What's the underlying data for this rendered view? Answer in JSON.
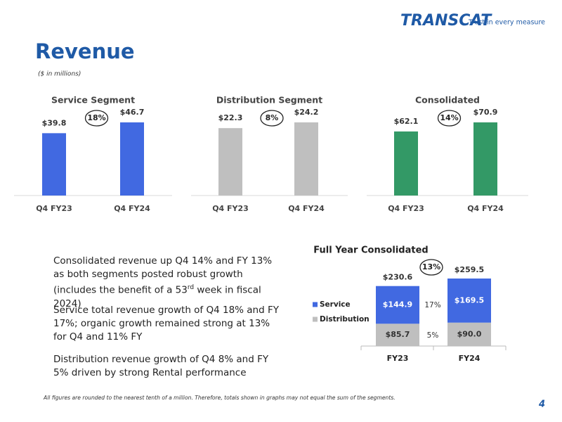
{
  "page": {
    "logo": "TRANSCAT",
    "tagline": "Trust in every measure",
    "title": "Revenue",
    "subtitle": "($ in millions)",
    "bullets": [
      [
        "Consolidated revenue up Q4 14% and FY 13% as both segments posted robust growth (includes the benefit of a 53",
        "rd",
        " week in fiscal 2024)"
      ],
      [
        "Service total revenue growth of Q4 18% and FY 17%; organic growth remained strong at 13% for Q4 and 11% FY"
      ],
      [
        "Distribution revenue growth of Q4 8% and FY 5% driven by strong Rental performance"
      ]
    ],
    "footnote": "All figures are rounded to the nearest tenth of a million. Therefore, totals shown in graphs may not equal the sum of the segments.",
    "page_number": "4"
  },
  "chart_data": [
    {
      "type": "bar",
      "title": "Service Segment",
      "categories": [
        "Q4 FY23",
        "Q4 FY24"
      ],
      "values": [
        39.8,
        46.7
      ],
      "value_labels": [
        "$39.8",
        "$46.7"
      ],
      "color": "#4169e1",
      "annotation": "18%"
    },
    {
      "type": "bar",
      "title": "Distribution Segment",
      "categories": [
        "Q4 FY23",
        "Q4 FY24"
      ],
      "values": [
        22.3,
        24.2
      ],
      "value_labels": [
        "$22.3",
        "$24.2"
      ],
      "color": "#bfbfbf",
      "annotation": "8%"
    },
    {
      "type": "bar",
      "title": "Consolidated",
      "categories": [
        "Q4 FY23",
        "Q4 FY24"
      ],
      "values": [
        62.1,
        70.9
      ],
      "value_labels": [
        "$62.1",
        "$70.9"
      ],
      "color": "#339966",
      "annotation": "14%"
    },
    {
      "type": "stacked-bar",
      "title": "Full Year Consolidated",
      "categories": [
        "FY23",
        "FY24"
      ],
      "series": [
        {
          "name": "Service",
          "color": "#4169e1",
          "values": [
            144.9,
            169.5
          ],
          "value_labels": [
            "$144.9",
            "$169.5"
          ],
          "growth_label": "17%"
        },
        {
          "name": "Distribution",
          "color": "#bfbfbf",
          "values": [
            85.7,
            90.0
          ],
          "value_labels": [
            "$85.7",
            "$90.0"
          ],
          "growth_label": "5%"
        }
      ],
      "totals": [
        230.6,
        259.5
      ],
      "total_labels": [
        "$230.6",
        "$259.5"
      ],
      "annotation": "13%"
    }
  ]
}
